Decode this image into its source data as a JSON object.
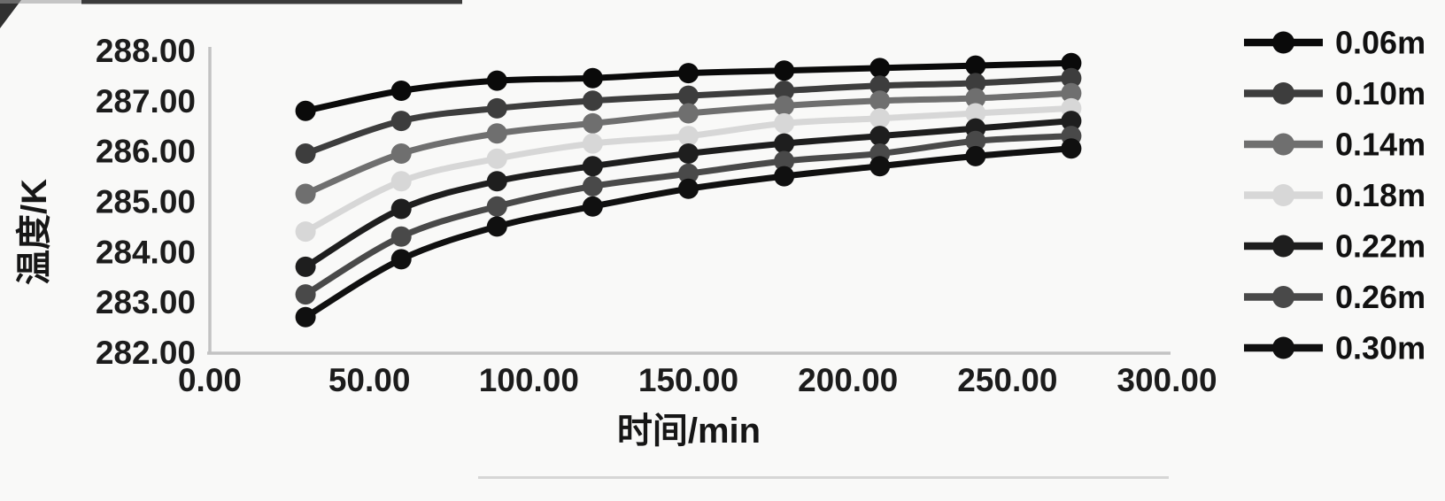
{
  "page": {
    "background": "#f9f9f8",
    "scan_artifact_color": "#1a1a1a",
    "scan_faint_line_color": "#b9b9b9"
  },
  "chart_data": {
    "type": "line",
    "title": "",
    "xlabel": "时间/min",
    "ylabel": "温度/K",
    "xlim": [
      0,
      300
    ],
    "ylim": [
      282,
      288
    ],
    "x_ticks": [
      "0.00",
      "50.00",
      "100.00",
      "150.00",
      "200.00",
      "250.00",
      "300.00"
    ],
    "y_ticks": [
      "282.00",
      "283.00",
      "284.00",
      "285.00",
      "286.00",
      "287.00",
      "288.00"
    ],
    "grid": false,
    "legend_position": "right",
    "axis_color": "#c3c3c3",
    "marker": "circle",
    "x": [
      30,
      60,
      90,
      120,
      150,
      180,
      210,
      240,
      270
    ],
    "series": [
      {
        "name": "0.06m",
        "color": "#0a0a0a",
        "values": [
          286.8,
          287.2,
          287.4,
          287.45,
          287.55,
          287.6,
          287.65,
          287.7,
          287.75
        ]
      },
      {
        "name": "0.10m",
        "color": "#3d3d3d",
        "values": [
          285.95,
          286.6,
          286.85,
          287.0,
          287.1,
          287.2,
          287.3,
          287.35,
          287.45
        ]
      },
      {
        "name": "0.14m",
        "color": "#6f6f6f",
        "values": [
          285.15,
          285.95,
          286.35,
          286.55,
          286.75,
          286.9,
          287.0,
          287.05,
          287.15
        ]
      },
      {
        "name": "0.18m",
        "color": "#d7d7d7",
        "values": [
          284.4,
          285.4,
          285.85,
          286.15,
          286.3,
          286.55,
          286.65,
          286.75,
          286.85
        ]
      },
      {
        "name": "0.22m",
        "color": "#1e1e1e",
        "values": [
          283.7,
          284.85,
          285.4,
          285.7,
          285.95,
          286.15,
          286.3,
          286.45,
          286.6
        ]
      },
      {
        "name": "0.26m",
        "color": "#494949",
        "values": [
          283.15,
          284.3,
          284.9,
          285.3,
          285.55,
          285.8,
          285.95,
          286.2,
          286.3
        ]
      },
      {
        "name": "0.30m",
        "color": "#101010",
        "values": [
          282.7,
          283.85,
          284.5,
          284.9,
          285.25,
          285.5,
          285.7,
          285.9,
          286.05
        ]
      }
    ]
  }
}
